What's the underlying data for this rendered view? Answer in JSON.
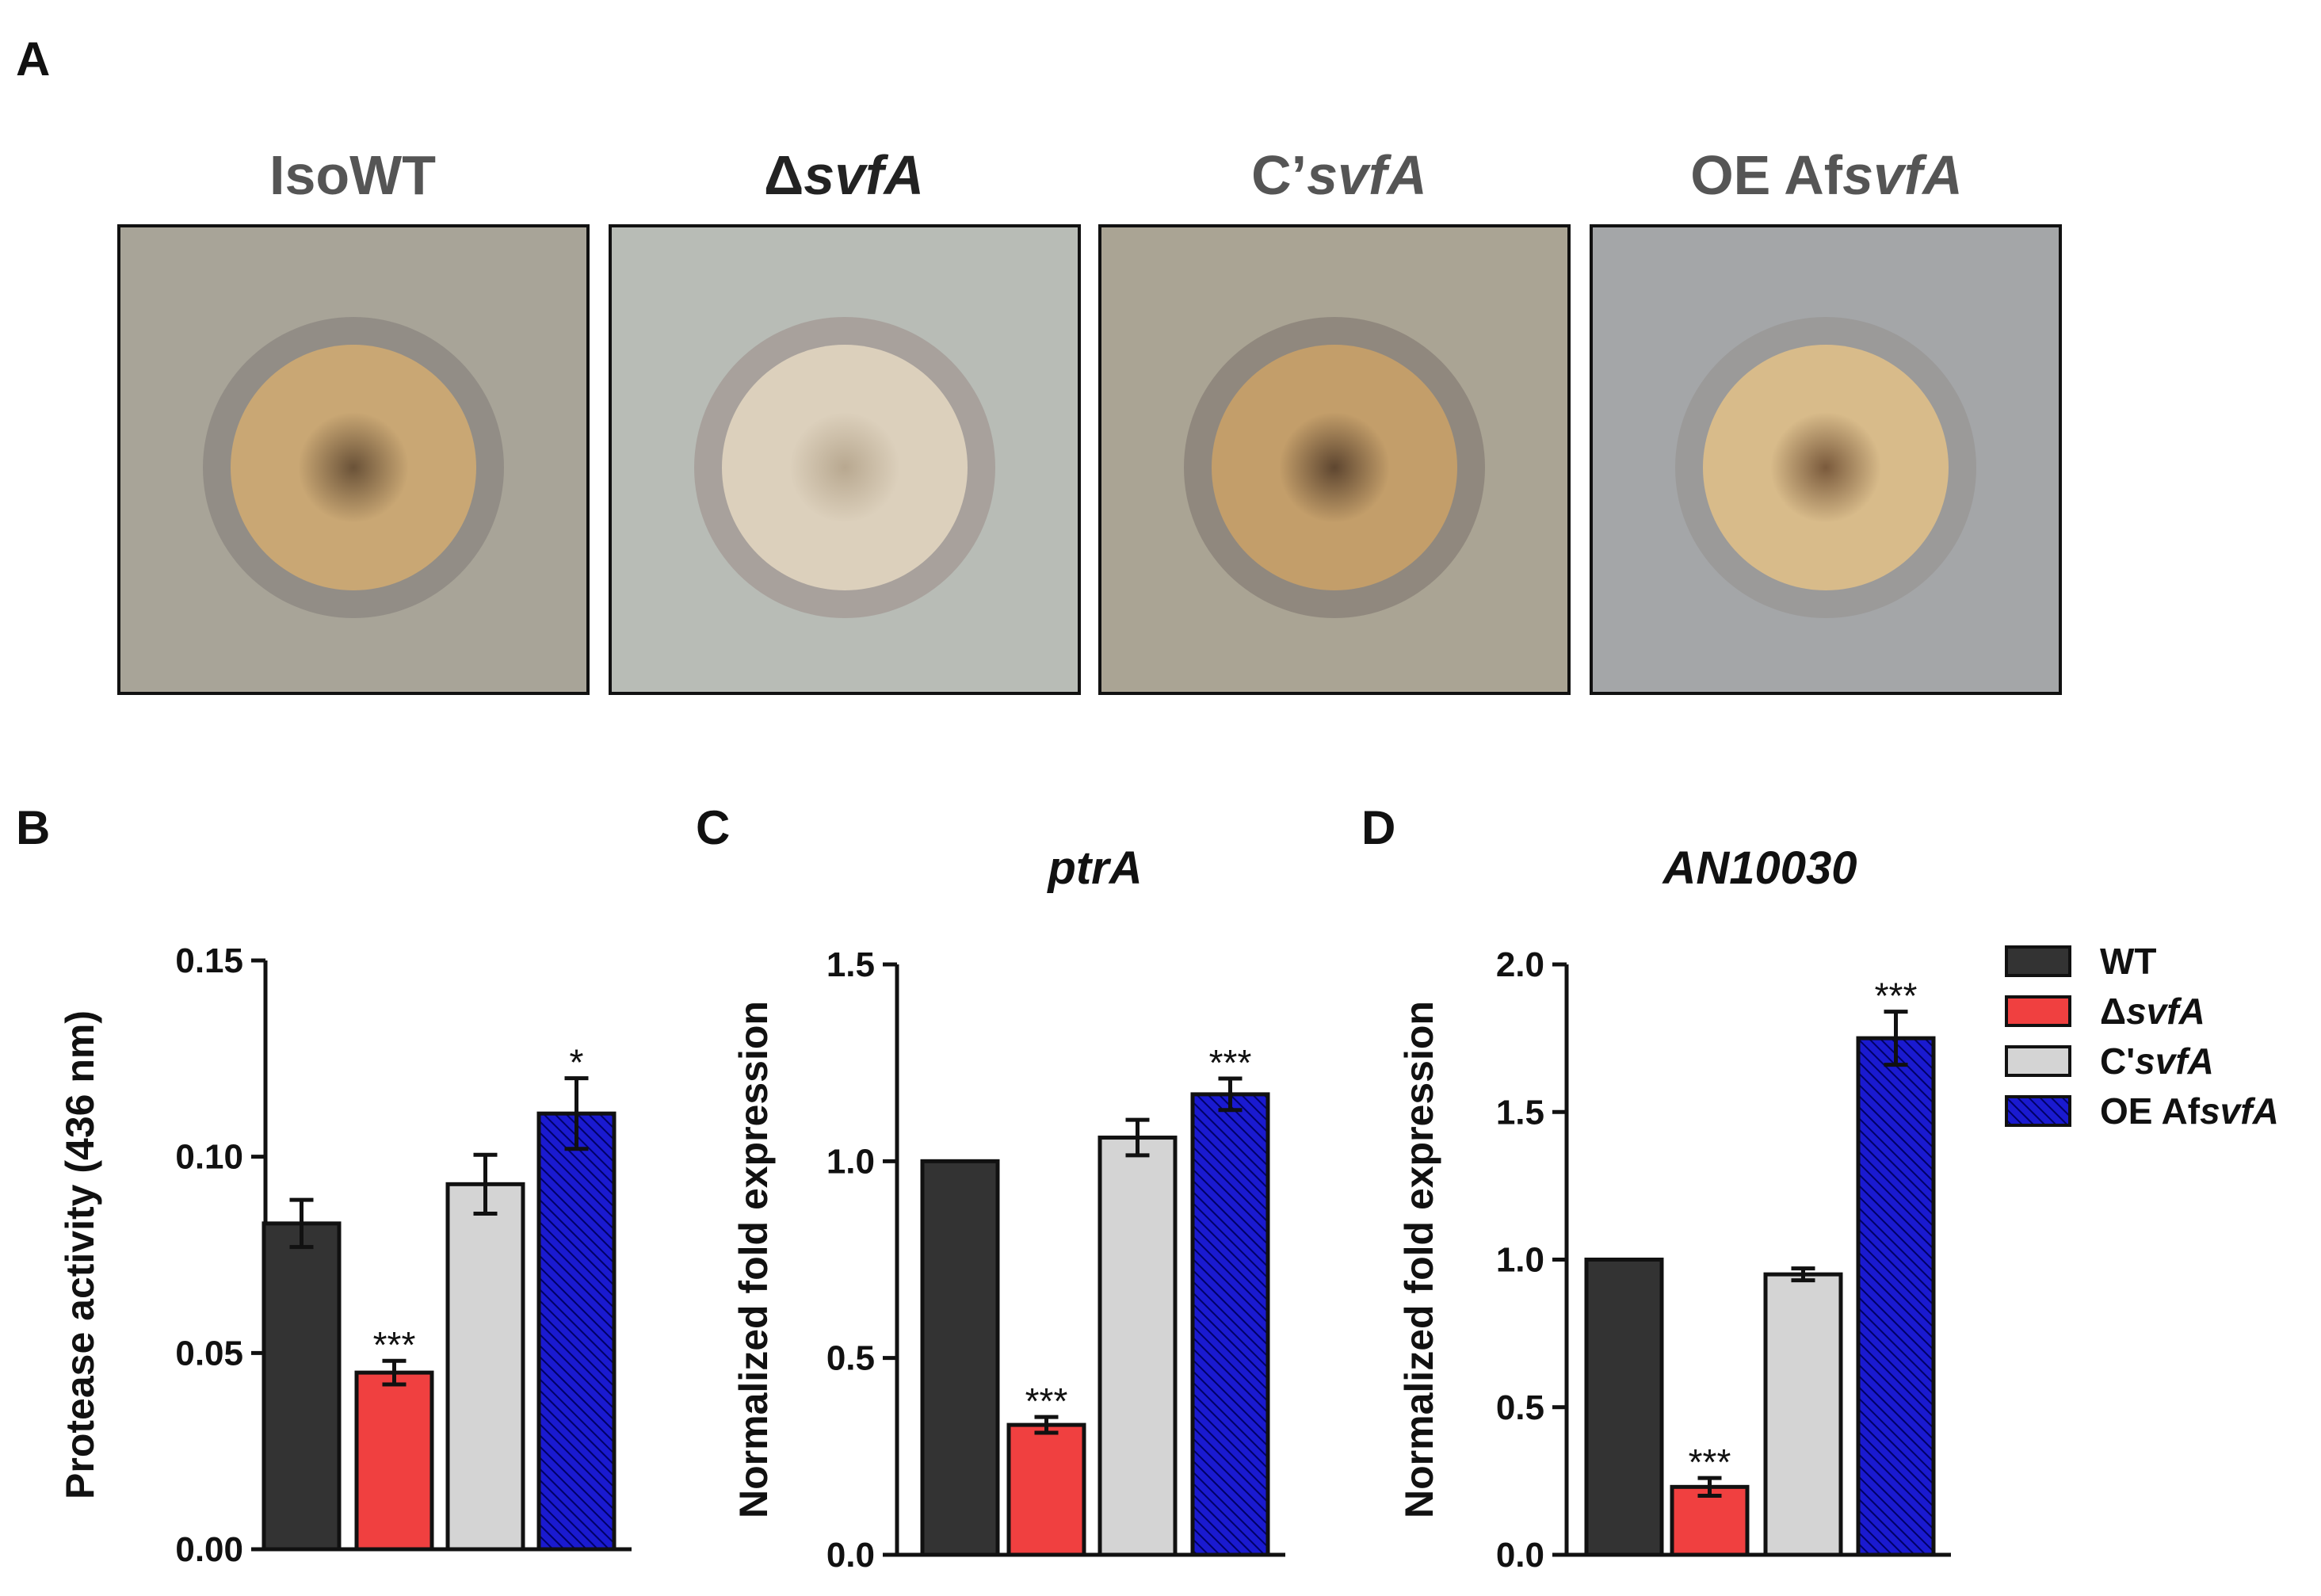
{
  "figure": {
    "panel_letters": {
      "a": "A",
      "b": "B",
      "c": "C",
      "d": "D"
    }
  },
  "plates": [
    {
      "parts": [
        {
          "text": "IsoWT",
          "italic": false
        }
      ],
      "dark": false,
      "colors": {
        "bg": "#a8a498",
        "halo": "#8e8a82",
        "colony": "#c9a774",
        "center": "#6a5238"
      }
    },
    {
      "parts": [
        {
          "text": "Δ",
          "italic": false
        },
        {
          "text": "svfA",
          "italic": true
        }
      ],
      "dark": true,
      "colors": {
        "bg": "#b8bcb6",
        "halo": "#a49c98",
        "colony": "#dcd0bc",
        "center": "#b8a890"
      }
    },
    {
      "parts": [
        {
          "text": "C’",
          "italic": false
        },
        {
          "text": "svfA",
          "italic": true
        }
      ],
      "dark": false,
      "colors": {
        "bg": "#aaa494",
        "halo": "#8c847a",
        "colony": "#c39e6a",
        "center": "#5e4630"
      }
    },
    {
      "parts": [
        {
          "text": "OE Af",
          "italic": false
        },
        {
          "text": "svfA",
          "italic": true
        }
      ],
      "dark": false,
      "colors": {
        "bg": "#a4a6a8",
        "halo": "#9a9896",
        "colony": "#d8bb8a",
        "center": "#7a5a3c"
      }
    }
  ],
  "legend": {
    "items": [
      {
        "parts": [
          {
            "text": "WT",
            "italic": false
          }
        ],
        "fill": "#333333",
        "pattern": "solid"
      },
      {
        "parts": [
          {
            "text": "Δ",
            "italic": false
          },
          {
            "text": "svfA",
            "italic": true
          }
        ],
        "fill": "#f04040",
        "pattern": "solid"
      },
      {
        "parts": [
          {
            "text": "C'",
            "italic": false
          },
          {
            "text": "svfA",
            "italic": true
          }
        ],
        "fill": "#d4d4d4",
        "pattern": "solid"
      },
      {
        "parts": [
          {
            "text": "OE Af",
            "italic": false
          },
          {
            "text": "svfA",
            "italic": true
          }
        ],
        "fill": "#1a1ad0",
        "pattern": "hatch"
      }
    ]
  },
  "chart_data": [
    {
      "panel": "B",
      "type": "bar",
      "title": "",
      "ylabel": "Protease activity (436 nm)",
      "ylim": [
        0,
        0.15
      ],
      "yticks": [
        "0.00",
        "0.05",
        "0.10",
        "0.15"
      ],
      "ytick_values": [
        0,
        0.05,
        0.1,
        0.15
      ],
      "categories": [
        "WT",
        "ΔsvfA",
        "C'svfA",
        "OE AfsvfA"
      ],
      "values": [
        0.083,
        0.045,
        0.093,
        0.111
      ],
      "errors": [
        0.006,
        0.003,
        0.0075,
        0.009
      ],
      "significance": [
        "",
        "***",
        "",
        "*"
      ]
    },
    {
      "panel": "C",
      "type": "bar",
      "title": "ptrA",
      "ylabel": "Normalized fold expression",
      "ylim": [
        0,
        1.5
      ],
      "yticks": [
        "0.0",
        "0.5",
        "1.0",
        "1.5"
      ],
      "ytick_values": [
        0,
        0.5,
        1.0,
        1.5
      ],
      "categories": [
        "WT",
        "ΔsvfA",
        "C'svfA",
        "OE AfsvfA"
      ],
      "values": [
        1.0,
        0.33,
        1.06,
        1.17
      ],
      "errors": [
        0,
        0.02,
        0.045,
        0.04
      ],
      "significance": [
        "",
        "***",
        "",
        "***"
      ]
    },
    {
      "panel": "D",
      "type": "bar",
      "title": "AN10030",
      "ylabel": "Normalized fold expression",
      "ylim": [
        0,
        2.0
      ],
      "yticks": [
        "0.0",
        "0.5",
        "1.0",
        "1.5",
        "2.0"
      ],
      "ytick_values": [
        0,
        0.5,
        1.0,
        1.5,
        2.0
      ],
      "categories": [
        "WT",
        "ΔsvfA",
        "C'svfA",
        "OE AfsvfA"
      ],
      "values": [
        1.0,
        0.23,
        0.95,
        1.75
      ],
      "errors": [
        0,
        0.03,
        0.02,
        0.09
      ],
      "significance": [
        "",
        "***",
        "",
        "***"
      ]
    }
  ]
}
